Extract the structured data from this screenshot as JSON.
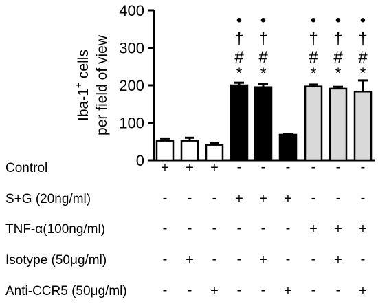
{
  "chart_data": {
    "type": "bar",
    "ylabel_line1": "Iba-1",
    "ylabel_superscript": "+",
    "ylabel_line1_suffix": " cells",
    "ylabel_line2": "per field of view",
    "ylim": [
      0,
      400
    ],
    "yticks": [
      "0",
      "100",
      "200",
      "300",
      "400"
    ],
    "grid": false,
    "values": [
      52,
      52,
      41,
      200,
      195,
      68,
      197,
      191,
      183
    ],
    "errors": [
      6,
      8,
      4,
      7,
      8,
      2,
      5,
      5,
      30
    ],
    "fills": [
      "white",
      "white",
      "white",
      "black",
      "black",
      "black",
      "lightgray",
      "lightgray",
      "lightgray"
    ],
    "annotations": [
      [],
      [],
      [],
      [
        "•",
        "†",
        "#",
        "*"
      ],
      [
        "•",
        "†",
        "#",
        "*"
      ],
      [],
      [
        "•",
        "†",
        "#",
        "*"
      ],
      [
        "•",
        "†",
        "#",
        "*"
      ],
      [
        "•",
        "†",
        "#",
        "*"
      ]
    ],
    "conditions": [
      {
        "label": "Control",
        "marks": [
          "+",
          "+",
          "+",
          "-",
          "-",
          "-",
          "-",
          "-",
          "-"
        ]
      },
      {
        "label": "S+G (20ng/ml)",
        "marks": [
          "-",
          "-",
          "-",
          "+",
          "+",
          "+",
          "-",
          "-",
          "-"
        ]
      },
      {
        "label": "TNF-α(100ng/ml)",
        "marks": [
          "-",
          "-",
          "-",
          "-",
          "-",
          "-",
          "+",
          "+",
          "+"
        ]
      },
      {
        "label": "Isotype (50μg/ml)",
        "marks": [
          "-",
          "+",
          "-",
          "-",
          "+",
          "-",
          "-",
          "+",
          "-"
        ]
      },
      {
        "label": "Anti-CCR5 (50μg/ml)",
        "marks": [
          "-",
          "-",
          "+",
          "-",
          "-",
          "+",
          "-",
          "-",
          "+"
        ]
      }
    ],
    "colors": {
      "white": "#ffffff",
      "black": "#000000",
      "lightgray": "#d9d9d9"
    }
  }
}
